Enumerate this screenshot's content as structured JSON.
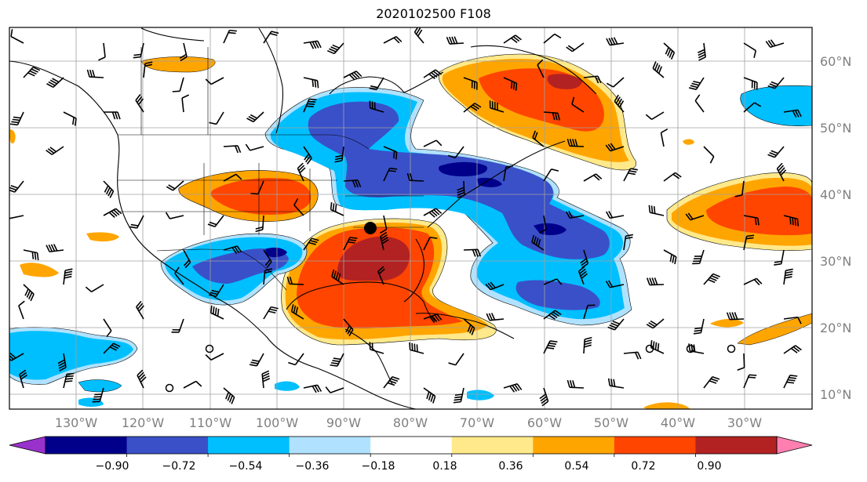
{
  "title": "2020102500 F108",
  "map": {
    "lat_labels": [
      "60°N",
      "50°N",
      "40°N",
      "30°N",
      "20°N",
      "10°N"
    ],
    "lon_labels": [
      "130°W",
      "120°W",
      "110°W",
      "100°W",
      "90°W",
      "80°W",
      "70°W",
      "60°W",
      "50°W",
      "40°W",
      "30°W"
    ]
  },
  "colorbar": {
    "ticks": [
      "−0.90",
      "−0.72",
      "−0.54",
      "−0.36",
      "−0.18",
      "0.18",
      "0.36",
      "0.54",
      "0.72",
      "0.90"
    ],
    "colors": [
      "#9932cc",
      "#00008b",
      "#3a50c8",
      "#00bfff",
      "#b0e2ff",
      "#ffffff",
      "#ffe98a",
      "#ffa500",
      "#ff4500",
      "#b22222",
      "#ff7fb0"
    ]
  },
  "colors": {
    "dark_red": "#b22222",
    "red": "#ff4500",
    "orange": "#ffa500",
    "light_yellow": "#ffe98a",
    "pale_blue": "#b0e2ff",
    "sky_blue": "#00bfff",
    "royal_blue": "#3a50c8",
    "navy": "#00008b"
  },
  "marker": "storm-center-dot"
}
